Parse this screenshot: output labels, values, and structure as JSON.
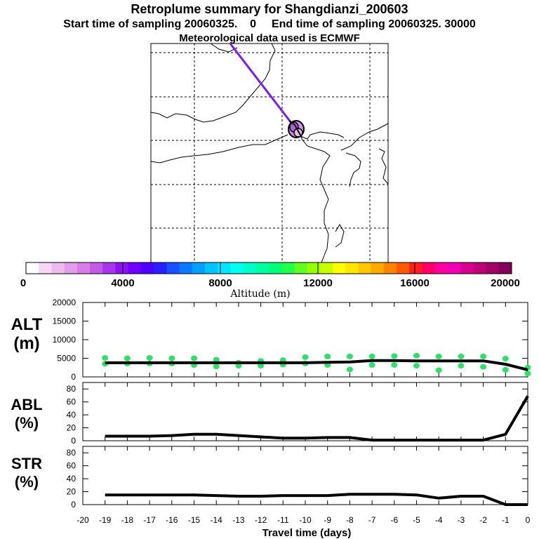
{
  "header": {
    "title": "Retroplume summary for Shangdianzi_200603",
    "subtitle_start": "Start time of sampling 20060325.    0",
    "subtitle_end": "End time of sampling 20060325. 30000",
    "meteo": "Meteorological data used is ECMWF"
  },
  "colorbar": {
    "label": "Altitude (m)",
    "ticks": [
      "0",
      "4000",
      "8000",
      "12000",
      "16000",
      "20000"
    ],
    "colors": [
      "#ffffff",
      "#f6d8f6",
      "#eebbee",
      "#e29de8",
      "#d67de6",
      "#c25ae6",
      "#a834ee",
      "#8c10f4",
      "#6e00ff",
      "#4c00ff",
      "#2a20ff",
      "#1650ff",
      "#0a78ff",
      "#00a0ff",
      "#00c4ff",
      "#00e6ff",
      "#00fff0",
      "#00ffc8",
      "#00ffa0",
      "#00ff78",
      "#20ff4c",
      "#60ff20",
      "#96ff00",
      "#c8ff00",
      "#ffff00",
      "#ffe600",
      "#ffc800",
      "#ffaa00",
      "#ff8200",
      "#ff5a00",
      "#ff1e1e",
      "#ff0068",
      "#ff00a0",
      "#f000b4",
      "#d80090",
      "#c00078",
      "#a00068",
      "#80005a"
    ]
  },
  "chart_data": [
    {
      "type": "line",
      "panel": "ALT",
      "ylabel": "ALT (m)",
      "ylabel_top": "ALT",
      "ylabel_bottom": "(m)",
      "ylim": [
        0,
        20000
      ],
      "yticks": [
        "0",
        "5000",
        "10000",
        "15000",
        "20000"
      ],
      "x": [
        0,
        -1,
        -2,
        -3,
        -4,
        -5,
        -6,
        -7,
        -8,
        -9,
        -10,
        -11,
        -12,
        -13,
        -14,
        -15,
        -16,
        -17,
        -18,
        -19
      ],
      "values": [
        1900,
        3400,
        4300,
        4300,
        4300,
        4300,
        4400,
        4400,
        4000,
        3900,
        3800,
        3800,
        3800,
        3800,
        3800,
        3800,
        3800,
        3800,
        3800,
        3800
      ],
      "scatter_series": [
        {
          "name": "upper",
          "x": [
            0,
            -1,
            -2,
            -3,
            -4,
            -5,
            -6,
            -7,
            -8,
            -9,
            -10,
            -11,
            -12,
            -13,
            -14,
            -15,
            -16,
            -17,
            -18,
            -19
          ],
          "values": [
            2500,
            4900,
            5500,
            5500,
            5500,
            5700,
            5600,
            5500,
            5500,
            5500,
            5300,
            4500,
            4300,
            3800,
            4600,
            5000,
            5000,
            5100,
            5000,
            5100
          ]
        },
        {
          "name": "lower",
          "x": [
            0,
            -1,
            -2,
            -3,
            -4,
            -5,
            -6,
            -7,
            -8,
            -9,
            -10,
            -11,
            -12,
            -13,
            -14,
            -15,
            -16,
            -17,
            -18,
            -19
          ],
          "values": [
            900,
            1900,
            2700,
            3000,
            1800,
            3000,
            3200,
            3200,
            2000,
            3200,
            3600,
            3300,
            3000,
            3000,
            2800,
            3200,
            3600,
            3600,
            3600,
            3500
          ]
        }
      ]
    },
    {
      "type": "line",
      "panel": "ABL",
      "ylabel": "ABL (%)",
      "ylabel_top": "ABL",
      "ylabel_bottom": "(%)",
      "ylim": [
        0,
        90
      ],
      "yticks": [
        "0",
        "20",
        "40",
        "60",
        "80"
      ],
      "x": [
        0,
        -1,
        -2,
        -3,
        -4,
        -5,
        -6,
        -7,
        -8,
        -9,
        -10,
        -11,
        -12,
        -13,
        -14,
        -15,
        -16,
        -17,
        -18,
        -19
      ],
      "values": [
        69,
        10,
        1,
        1,
        1,
        1,
        1,
        1,
        5,
        5,
        4,
        4,
        6,
        8,
        10,
        10,
        8,
        7,
        7,
        7
      ]
    },
    {
      "type": "line",
      "panel": "STR",
      "ylabel": "STR (%)",
      "ylabel_top": "STR",
      "ylabel_bottom": "(%)",
      "ylim": [
        0,
        90
      ],
      "yticks": [
        "0",
        "20",
        "40",
        "60",
        "80"
      ],
      "x": [
        0,
        -1,
        -2,
        -3,
        -4,
        -5,
        -6,
        -7,
        -8,
        -9,
        -10,
        -11,
        -12,
        -13,
        -14,
        -15,
        -16,
        -17,
        -18,
        -19
      ],
      "values": [
        0,
        0,
        13,
        13,
        10,
        15,
        16,
        16,
        16,
        14,
        14,
        14,
        13,
        13,
        14,
        15,
        15,
        15,
        15,
        15
      ],
      "xlabel": "Travel time (days)",
      "xticks": [
        "-20",
        "-19",
        "-18",
        "-17",
        "-16",
        "-15",
        "-14",
        "-13",
        "-12",
        "-11",
        "-10",
        "-9",
        "-8",
        "-7",
        "-6",
        "-5",
        "-4",
        "-3",
        "-2",
        "-1",
        "0"
      ]
    }
  ]
}
